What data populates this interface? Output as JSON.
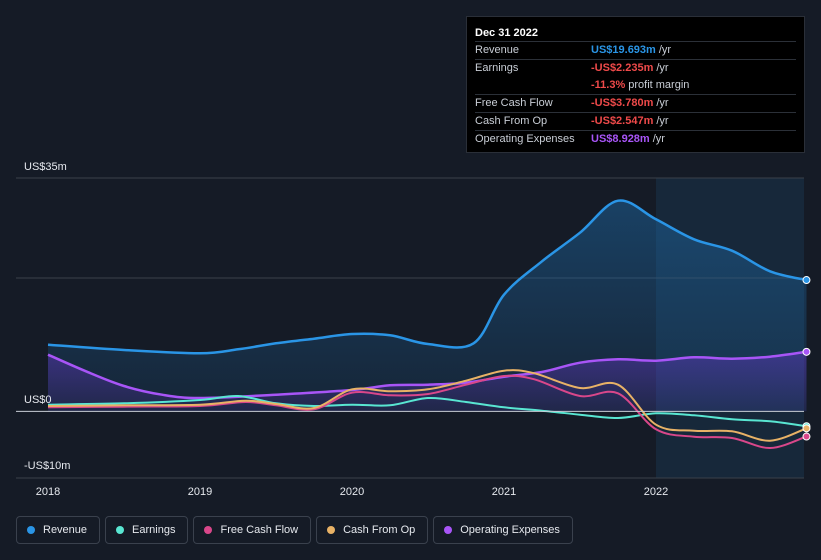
{
  "chart_data": {
    "type": "line",
    "y_axis": {
      "labels": [
        "US$35m",
        "US$0",
        "-US$10m"
      ],
      "ylim": [
        -10,
        35
      ]
    },
    "x_axis": {
      "ticks": [
        2018,
        2019,
        2020,
        2021,
        2022
      ],
      "xlim": [
        2017.98,
        2022.99
      ]
    },
    "forecast_start": 2022.0,
    "series": [
      {
        "name": "Revenue",
        "color": "#2a95e6",
        "fill": true,
        "x": [
          2018.0,
          2018.5,
          2019.0,
          2019.25,
          2019.5,
          2019.75,
          2020.0,
          2020.25,
          2020.5,
          2020.8,
          2021.0,
          2021.25,
          2021.5,
          2021.75,
          2022.0,
          2022.25,
          2022.5,
          2022.75,
          2022.99
        ],
        "y": [
          10.0,
          9.2,
          8.7,
          9.3,
          10.2,
          10.9,
          11.6,
          11.4,
          10.1,
          10.2,
          17.5,
          22.5,
          26.8,
          31.6,
          28.8,
          25.8,
          24.1,
          21.0,
          19.693
        ]
      },
      {
        "name": "Operating Expenses",
        "color": "#a855f7",
        "fill": true,
        "x": [
          2018.0,
          2018.25,
          2018.5,
          2018.75,
          2019.0,
          2019.5,
          2020.0,
          2020.25,
          2020.5,
          2020.75,
          2021.0,
          2021.25,
          2021.5,
          2021.75,
          2022.0,
          2022.25,
          2022.5,
          2022.75,
          2022.99
        ],
        "y": [
          8.5,
          6.0,
          3.8,
          2.5,
          2.0,
          2.5,
          3.2,
          3.9,
          4.0,
          4.3,
          5.2,
          5.9,
          7.3,
          7.8,
          7.6,
          8.1,
          7.9,
          8.2,
          8.928
        ]
      },
      {
        "name": "Earnings",
        "color": "#59e6d2",
        "fill": false,
        "x": [
          2018.0,
          2018.5,
          2019.0,
          2019.25,
          2019.5,
          2019.75,
          2020.0,
          2020.25,
          2020.5,
          2020.75,
          2021.0,
          2021.25,
          2021.5,
          2021.75,
          2022.0,
          2022.25,
          2022.5,
          2022.75,
          2022.99
        ],
        "y": [
          1.0,
          1.2,
          1.7,
          2.3,
          1.2,
          0.8,
          1.0,
          0.9,
          2.0,
          1.4,
          0.6,
          0.1,
          -0.5,
          -1.0,
          -0.3,
          -0.6,
          -1.2,
          -1.5,
          -2.235
        ]
      },
      {
        "name": "Free Cash Flow",
        "color": "#d9478a",
        "fill": false,
        "x": [
          2018.0,
          2018.5,
          2019.0,
          2019.3,
          2019.5,
          2019.75,
          2020.0,
          2020.25,
          2020.5,
          2020.75,
          2021.0,
          2021.2,
          2021.5,
          2021.75,
          2022.0,
          2022.25,
          2022.5,
          2022.75,
          2022.99
        ],
        "y": [
          0.6,
          0.7,
          0.8,
          1.4,
          0.9,
          0.3,
          2.8,
          2.4,
          2.6,
          4.0,
          5.3,
          4.8,
          2.3,
          2.7,
          -2.7,
          -3.8,
          -4.0,
          -5.5,
          -3.78
        ]
      },
      {
        "name": "Cash From Op",
        "color": "#e8b266",
        "fill": false,
        "x": [
          2018.0,
          2018.5,
          2019.0,
          2019.3,
          2019.5,
          2019.75,
          2020.0,
          2020.25,
          2020.5,
          2020.75,
          2021.0,
          2021.2,
          2021.5,
          2021.75,
          2022.0,
          2022.25,
          2022.5,
          2022.75,
          2022.99
        ],
        "y": [
          0.8,
          0.9,
          1.0,
          1.6,
          1.1,
          0.5,
          3.3,
          3.0,
          3.3,
          4.6,
          6.1,
          5.7,
          3.5,
          4.0,
          -2.0,
          -2.9,
          -3.0,
          -4.4,
          -2.547
        ]
      }
    ]
  },
  "tooltip": {
    "date": "Dec 31 2022",
    "rows": [
      {
        "label": "Revenue",
        "value": "US$19.693m",
        "unit": "/yr",
        "color": "#2a95e6"
      },
      {
        "label": "Earnings",
        "value": "-US$2.235m",
        "unit": "/yr",
        "color": "#ef4a4a"
      },
      {
        "label": "",
        "value": "-11.3%",
        "unit": "profit margin",
        "color": "#ef4a4a"
      },
      {
        "label": "Free Cash Flow",
        "value": "-US$3.780m",
        "unit": "/yr",
        "color": "#ef4a4a"
      },
      {
        "label": "Cash From Op",
        "value": "-US$2.547m",
        "unit": "/yr",
        "color": "#ef4a4a"
      },
      {
        "label": "Operating Expenses",
        "value": "US$8.928m",
        "unit": "/yr",
        "color": "#a855f7"
      }
    ]
  },
  "legend": [
    {
      "label": "Revenue",
      "color": "#2a95e6"
    },
    {
      "label": "Earnings",
      "color": "#59e6d2"
    },
    {
      "label": "Free Cash Flow",
      "color": "#d9478a"
    },
    {
      "label": "Cash From Op",
      "color": "#e8b266"
    },
    {
      "label": "Operating Expenses",
      "color": "#a855f7"
    }
  ]
}
